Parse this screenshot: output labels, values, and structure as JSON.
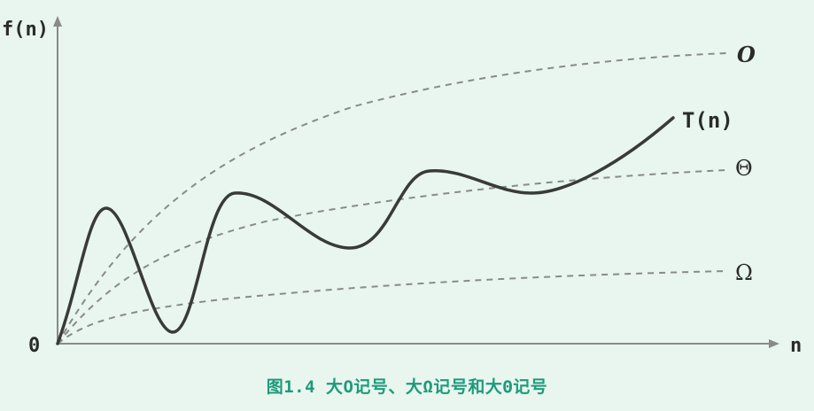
{
  "axes": {
    "y_label": "f(n)",
    "x_label": "n",
    "origin_label": "0"
  },
  "curves": {
    "big_o_label": "O",
    "t_label": "T(n)",
    "theta_label": "Θ",
    "omega_label": "Ω"
  },
  "caption": "图1.4 大O记号、大Ω记号和大Θ记号",
  "colors": {
    "background": "#e8f6ef",
    "axis": "#8a8a8a",
    "dashed": "#8a8a8a",
    "solid": "#3a3a3a",
    "caption": "#1f9a7a"
  }
}
